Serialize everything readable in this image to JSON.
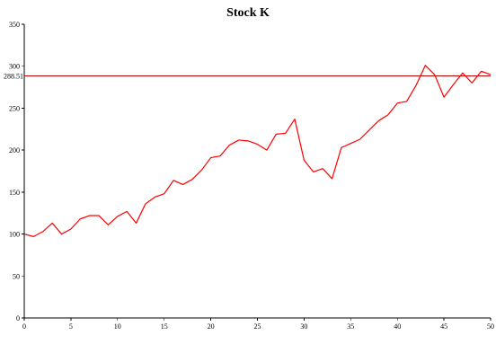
{
  "chart_data": {
    "type": "line",
    "title": "Stock K",
    "xlabel": "",
    "ylabel": "",
    "xlim": [
      0,
      50
    ],
    "ylim": [
      0,
      350
    ],
    "xticks": [
      0,
      5,
      10,
      15,
      20,
      25,
      30,
      35,
      40,
      45,
      50
    ],
    "yticks": [
      0,
      50,
      100,
      150,
      200,
      250,
      300,
      350
    ],
    "grid": false,
    "legend": "none",
    "colors": {
      "series": "#ff0000",
      "reference": "#c00000",
      "axis": "#000000"
    },
    "reference_line": {
      "value": 288.51,
      "label": "288.51"
    },
    "series": [
      {
        "x": [
          0,
          1,
          2,
          3,
          4,
          5,
          6,
          7,
          8,
          9,
          10,
          11,
          12,
          13,
          14,
          15,
          16,
          17,
          18,
          19,
          20,
          21,
          22,
          23,
          24,
          25,
          26,
          27,
          28,
          29,
          30,
          31,
          32,
          33,
          34,
          35,
          36,
          37,
          38,
          39,
          40,
          41,
          42,
          43,
          44,
          45,
          46,
          47,
          48,
          49,
          50
        ],
        "values": [
          100,
          97,
          103,
          113,
          100,
          106,
          118,
          122,
          122,
          111,
          121,
          127,
          113,
          136,
          144,
          148,
          164,
          159,
          165,
          176,
          191,
          193,
          206,
          212,
          211,
          207,
          200,
          219,
          220,
          237,
          188,
          174,
          178,
          166,
          203,
          208,
          213,
          224,
          235,
          242,
          256,
          258,
          277,
          301,
          290,
          263,
          278,
          292,
          280,
          294,
          290
        ]
      }
    ]
  }
}
